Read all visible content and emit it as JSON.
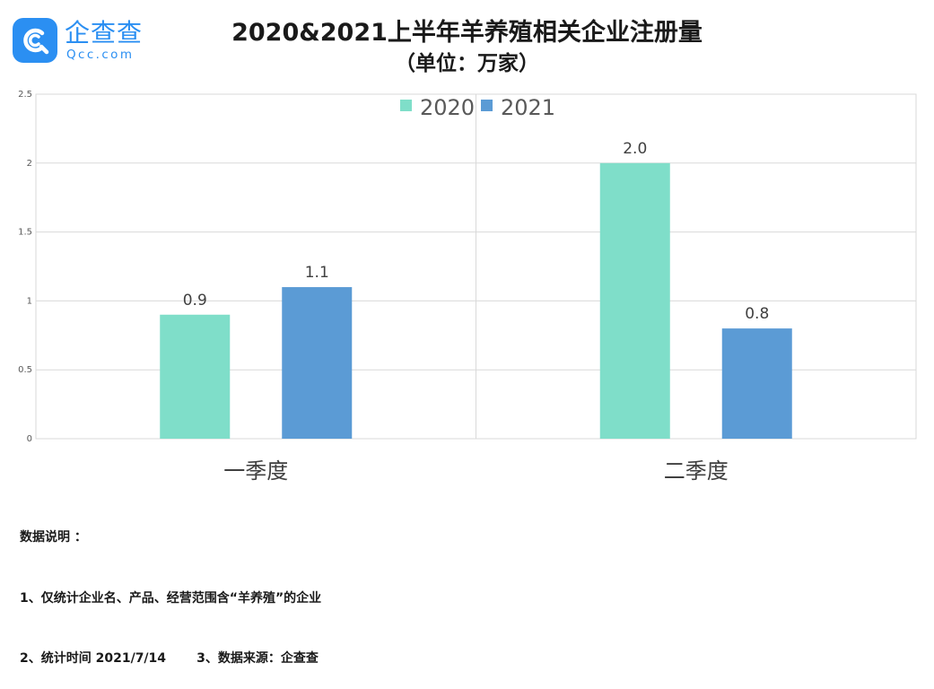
{
  "logo": {
    "name": "企查查",
    "domain": "Qcc.com",
    "icon": "qcc-logo-icon",
    "color": "#2b8ff2"
  },
  "title": "2020&2021上半年羊养殖相关企业注册量",
  "subtitle": "（单位：万家）",
  "chart_data": {
    "type": "bar",
    "title": "2020&2021上半年羊养殖相关企业注册量",
    "subtitle": "（单位：万家）",
    "categories": [
      "一季度",
      "二季度"
    ],
    "series": [
      {
        "name": "2020",
        "values": [
          0.9,
          2.0
        ],
        "labels": [
          "0.9",
          "2.0"
        ],
        "color": "#7fdec9"
      },
      {
        "name": "2021",
        "values": [
          1.1,
          0.8
        ],
        "labels": [
          "1.1",
          "0.8"
        ],
        "color": "#5b9bd5"
      }
    ],
    "ylim": [
      0,
      2.5
    ],
    "yticks": [
      "0",
      "0.5",
      "1",
      "1.5",
      "2",
      "2.5"
    ],
    "xlabel": "",
    "ylabel": "",
    "grid": true,
    "legend": "top-center"
  },
  "notes": {
    "heading": "数据说明 ：",
    "line1": "1、仅统计企业名、产品、经营范围含“羊养殖”的企业",
    "line2": "2、统计时间 2021/7/14       3、数据来源：企查查"
  }
}
